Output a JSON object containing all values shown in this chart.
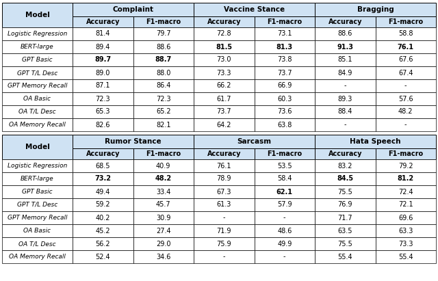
{
  "header_bg": "#cfe2f3",
  "row_bg_white": "#ffffff",
  "top_sections": [
    {
      "name": "Complaint",
      "cols": [
        "Accuracy",
        "F1-macro"
      ]
    },
    {
      "name": "Vaccine Stance",
      "cols": [
        "Accuracy",
        "F1-macro"
      ]
    },
    {
      "name": "Bragging",
      "cols": [
        "Accuracy",
        "F1-macro"
      ]
    }
  ],
  "bottom_sections": [
    {
      "name": "Rumor Stance",
      "cols": [
        "Accuracy",
        "F1-macro"
      ]
    },
    {
      "name": "Sarcasm",
      "cols": [
        "Accuracy",
        "F1-macro"
      ]
    },
    {
      "name": "Hata Speech",
      "cols": [
        "Accuracy",
        "F1-macro"
      ]
    }
  ],
  "models": [
    "Logistic Regression",
    "BERT-large",
    "GPT Basic",
    "GPT T/L Desc",
    "GPT Memory Recall",
    "OA Basic",
    "OA T/L Desc",
    "OA Memory Recall"
  ],
  "top_data": [
    [
      [
        "81.4",
        "79.7"
      ],
      [
        "72.8",
        "73.1"
      ],
      [
        "88.6",
        "58.8"
      ]
    ],
    [
      [
        "89.4",
        "88.6"
      ],
      [
        "81.5",
        "81.3"
      ],
      [
        "91.3",
        "76.1"
      ]
    ],
    [
      [
        "89.7",
        "88.7"
      ],
      [
        "73.0",
        "73.8"
      ],
      [
        "85.1",
        "67.6"
      ]
    ],
    [
      [
        "89.0",
        "88.0"
      ],
      [
        "73.3",
        "73.7"
      ],
      [
        "84.9",
        "67.4"
      ]
    ],
    [
      [
        "87.1",
        "86.4"
      ],
      [
        "66.2",
        "66.9"
      ],
      [
        "-",
        "-"
      ]
    ],
    [
      [
        "72.3",
        "72.3"
      ],
      [
        "61.7",
        "60.3"
      ],
      [
        "89.3",
        "57.6"
      ]
    ],
    [
      [
        "65.3",
        "65.2"
      ],
      [
        "73.7",
        "73.6"
      ],
      [
        "88.4",
        "48.2"
      ]
    ],
    [
      [
        "82.6",
        "82.1"
      ],
      [
        "64.2",
        "63.8"
      ],
      [
        "-",
        "-"
      ]
    ]
  ],
  "bottom_data": [
    [
      [
        "68.5",
        "40.9"
      ],
      [
        "76.1",
        "53.5"
      ],
      [
        "83.2",
        "79.2"
      ]
    ],
    [
      [
        "73.2",
        "48.2"
      ],
      [
        "78.9",
        "58.4"
      ],
      [
        "84.5",
        "81.2"
      ]
    ],
    [
      [
        "49.4",
        "33.4"
      ],
      [
        "67.3",
        "62.1"
      ],
      [
        "75.5",
        "72.4"
      ]
    ],
    [
      [
        "59.2",
        "45.7"
      ],
      [
        "61.3",
        "57.9"
      ],
      [
        "76.9",
        "72.1"
      ]
    ],
    [
      [
        "40.2",
        "30.9"
      ],
      [
        "-",
        "-"
      ],
      [
        "71.7",
        "69.6"
      ]
    ],
    [
      [
        "45.2",
        "27.4"
      ],
      [
        "71.9",
        "48.6"
      ],
      [
        "63.5",
        "63.3"
      ]
    ],
    [
      [
        "56.2",
        "29.0"
      ],
      [
        "75.9",
        "49.9"
      ],
      [
        "75.5",
        "73.3"
      ]
    ],
    [
      [
        "52.4",
        "34.6"
      ],
      [
        "-",
        "-"
      ],
      [
        "55.4",
        "55.4"
      ]
    ]
  ],
  "top_bold": [
    [
      [
        false,
        false
      ],
      [
        false,
        false
      ],
      [
        false,
        false
      ]
    ],
    [
      [
        false,
        false
      ],
      [
        true,
        true
      ],
      [
        true,
        true
      ]
    ],
    [
      [
        true,
        true
      ],
      [
        false,
        false
      ],
      [
        false,
        false
      ]
    ],
    [
      [
        false,
        false
      ],
      [
        false,
        false
      ],
      [
        false,
        false
      ]
    ],
    [
      [
        false,
        false
      ],
      [
        false,
        false
      ],
      [
        false,
        false
      ]
    ],
    [
      [
        false,
        false
      ],
      [
        false,
        false
      ],
      [
        false,
        false
      ]
    ],
    [
      [
        false,
        false
      ],
      [
        false,
        false
      ],
      [
        false,
        false
      ]
    ],
    [
      [
        false,
        false
      ],
      [
        false,
        false
      ],
      [
        false,
        false
      ]
    ]
  ],
  "bottom_bold": [
    [
      [
        false,
        false
      ],
      [
        false,
        false
      ],
      [
        false,
        false
      ]
    ],
    [
      [
        true,
        true
      ],
      [
        false,
        false
      ],
      [
        true,
        true
      ]
    ],
    [
      [
        false,
        false
      ],
      [
        false,
        true
      ],
      [
        false,
        false
      ]
    ],
    [
      [
        false,
        false
      ],
      [
        false,
        false
      ],
      [
        false,
        false
      ]
    ],
    [
      [
        false,
        false
      ],
      [
        false,
        false
      ],
      [
        false,
        false
      ]
    ],
    [
      [
        false,
        false
      ],
      [
        false,
        false
      ],
      [
        false,
        false
      ]
    ],
    [
      [
        false,
        false
      ],
      [
        false,
        false
      ],
      [
        false,
        false
      ]
    ],
    [
      [
        false,
        false
      ],
      [
        false,
        false
      ],
      [
        false,
        false
      ]
    ]
  ],
  "fig_width": 6.4,
  "fig_height": 4.11,
  "dpi": 100
}
